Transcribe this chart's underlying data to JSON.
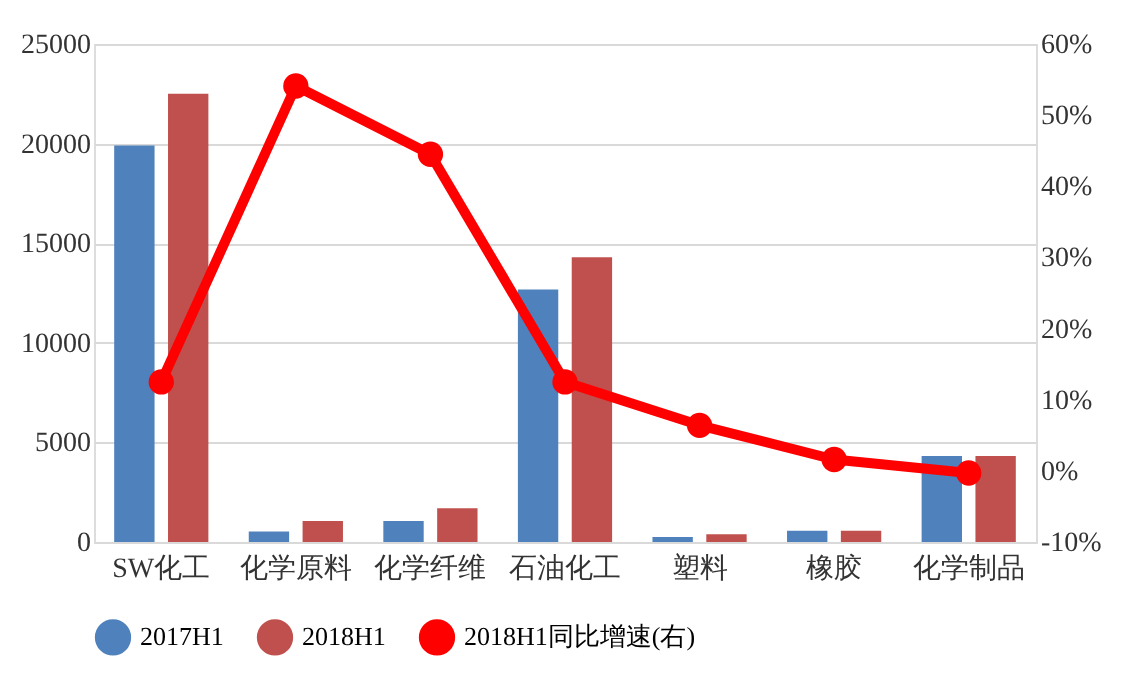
{
  "chart_data": {
    "type": "bar",
    "categories": [
      "SW化工",
      "化学原料",
      "化学纤维",
      "石油化工",
      "塑料",
      "橡胶",
      "化学制品"
    ],
    "series": [
      {
        "name": "2017H1",
        "color": "#4f81bd",
        "values": [
          19900,
          530,
          1060,
          12680,
          250,
          570,
          4320
        ]
      },
      {
        "name": "2018H1",
        "color": "#c0504d",
        "values": [
          22500,
          1060,
          1700,
          14300,
          390,
          570,
          4320
        ]
      },
      {
        "name": "2018H1同比增速(右)",
        "type": "line",
        "axis": "y2",
        "color": "#ff0000",
        "marker": "circle",
        "values": [
          12.5,
          54.1,
          44.5,
          12.5,
          6.4,
          1.6,
          -0.3
        ]
      }
    ],
    "ylim": [
      0,
      25000
    ],
    "yticks": [
      0,
      5000,
      10000,
      15000,
      20000,
      25000
    ],
    "y2lim": [
      -10,
      60
    ],
    "y2ticks": [
      {
        "value": -10,
        "label": "-10%"
      },
      {
        "value": 0,
        "label": "0%"
      },
      {
        "value": 10,
        "label": "10%"
      },
      {
        "value": 20,
        "label": "20%"
      },
      {
        "value": 30,
        "label": "30%"
      },
      {
        "value": 40,
        "label": "40%"
      },
      {
        "value": 50,
        "label": "50%"
      },
      {
        "value": 60,
        "label": "60%"
      }
    ],
    "grid": "y",
    "legend": "bottom"
  }
}
